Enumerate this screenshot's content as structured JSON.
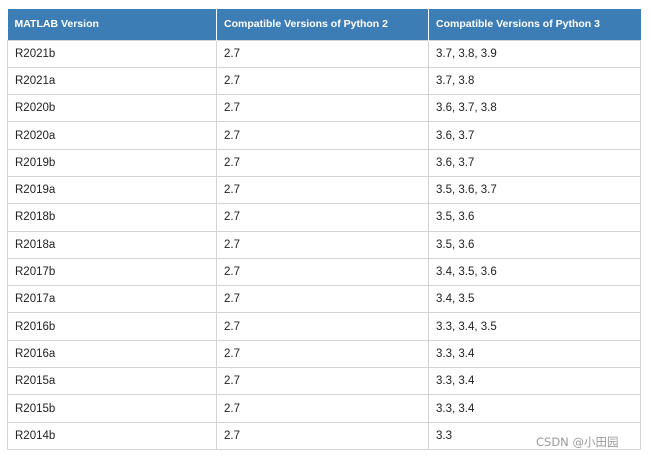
{
  "table": {
    "headers": [
      "MATLAB Version",
      "Compatible Versions of Python 2",
      "Compatible Versions of Python 3"
    ],
    "rows": [
      [
        "R2021b",
        "2.7",
        "3.7, 3.8, 3.9"
      ],
      [
        "R2021a",
        "2.7",
        "3.7, 3.8"
      ],
      [
        "R2020b",
        "2.7",
        "3.6, 3.7, 3.8"
      ],
      [
        "R2020a",
        "2.7",
        "3.6, 3.7"
      ],
      [
        "R2019b",
        "2.7",
        "3.6, 3.7"
      ],
      [
        "R2019a",
        "2.7",
        "3.5, 3.6, 3.7"
      ],
      [
        "R2018b",
        "2.7",
        "3.5, 3.6"
      ],
      [
        "R2018a",
        "2.7",
        "3.5, 3.6"
      ],
      [
        "R2017b",
        "2.7",
        "3.4, 3.5, 3.6"
      ],
      [
        "R2017a",
        "2.7",
        "3.4, 3.5"
      ],
      [
        "R2016b",
        "2.7",
        "3.3, 3.4, 3.5"
      ],
      [
        "R2016a",
        "2.7",
        "3.3, 3.4"
      ],
      [
        "R2015a",
        "2.7",
        "3.3, 3.4"
      ],
      [
        "R2015b",
        "2.7",
        "3.3, 3.4"
      ],
      [
        "R2014b",
        "2.7",
        "3.3"
      ]
    ]
  },
  "watermark": "CSDN @小田园",
  "colors": {
    "header_bg": "#3d7db5",
    "header_text": "#ffffff",
    "border": "#d4d4d4"
  }
}
